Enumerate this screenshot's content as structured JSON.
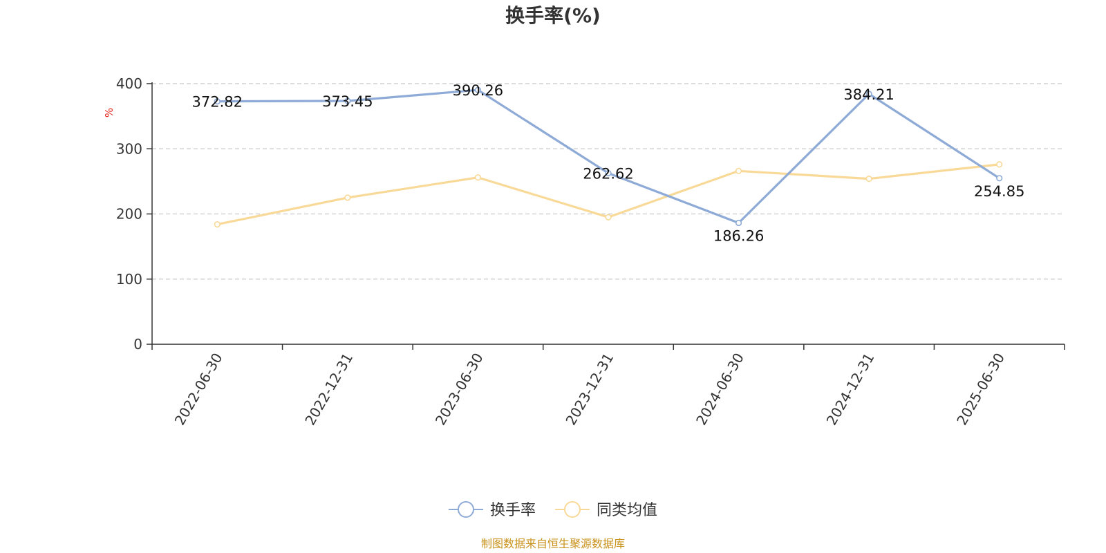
{
  "chart_data": {
    "type": "line",
    "title": "换手率(%)",
    "ylabel": "%",
    "ylim": [
      0,
      400
    ],
    "yticks": [
      0,
      100,
      200,
      300,
      400
    ],
    "grid": true,
    "categories": [
      "2022-06-30",
      "2022-12-31",
      "2023-06-30",
      "2023-12-31",
      "2024-06-30",
      "2024-12-31",
      "2025-06-30"
    ],
    "series": [
      {
        "name": "换手率",
        "color": "#8eaad6",
        "values": [
          372.82,
          373.45,
          390.26,
          262.62,
          186.26,
          384.21,
          254.85
        ],
        "labels": [
          "372.82",
          "373.45",
          "390.26",
          "262.62",
          "186.26",
          "384.21",
          "254.85"
        ]
      },
      {
        "name": "同类均值",
        "color": "#f9d998",
        "values": [
          184,
          225,
          256,
          195,
          266,
          254,
          276
        ]
      }
    ],
    "legend_position": "bottom",
    "source": "制图数据来自恒生聚源数据库"
  }
}
